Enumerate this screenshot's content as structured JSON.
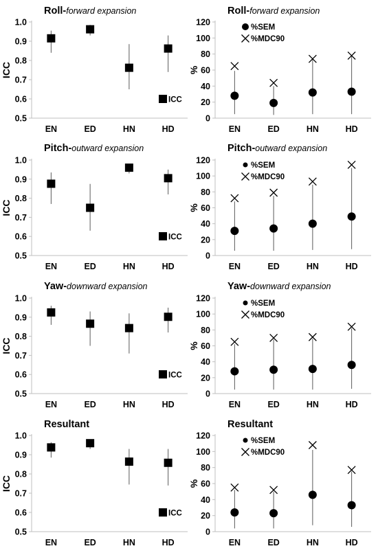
{
  "colors": {
    "marker": "#000000",
    "errorbar": "#595959",
    "axis": "#bfbfbf",
    "background": "#ffffff"
  },
  "chart_data": [
    {
      "panel": "roll-icc",
      "type": "scatter",
      "title": "Roll-",
      "title_italic": "forward expansion",
      "ylabel": "ICC",
      "ylim": [
        0.5,
        1.0
      ],
      "yticks": [
        "0.5",
        "0.6",
        "0.7",
        "0.8",
        "0.9",
        "1.0"
      ],
      "categories": [
        "EN",
        "ED",
        "HN",
        "HD"
      ],
      "series": [
        {
          "name": "ICC",
          "marker": "square",
          "values": [
            0.915,
            0.962,
            0.762,
            0.862
          ],
          "ci_low": [
            0.84,
            0.93,
            0.65,
            0.74
          ],
          "ci_high": [
            0.955,
            0.985,
            0.885,
            0.93
          ]
        }
      ]
    },
    {
      "panel": "roll-error",
      "type": "scatter",
      "title": "Roll-",
      "title_italic": "forward expansion",
      "ylabel": "%",
      "ylim": [
        0,
        120
      ],
      "yticks": [
        "0",
        "20",
        "40",
        "60",
        "80",
        "100",
        "120"
      ],
      "categories": [
        "EN",
        "ED",
        "HN",
        "HD"
      ],
      "series": [
        {
          "name": "%SEM",
          "marker": "circle",
          "values": [
            28,
            19,
            32,
            33
          ],
          "ci_low": [
            5,
            4,
            5,
            5
          ],
          "ci_high": [
            59,
            40,
            74,
            78
          ]
        },
        {
          "name": "%MDC90",
          "marker": "x",
          "values": [
            65,
            44,
            74,
            78
          ]
        }
      ]
    },
    {
      "panel": "pitch-icc",
      "type": "scatter",
      "title": "Pitch-",
      "title_italic": "outward expansion",
      "ylabel": "ICC",
      "ylim": [
        0.5,
        1.0
      ],
      "yticks": [
        "0.5",
        "0.6",
        "0.7",
        "0.8",
        "0.9",
        "1.0"
      ],
      "categories": [
        "EN",
        "ED",
        "HN",
        "HD"
      ],
      "series": [
        {
          "name": "ICC",
          "marker": "square",
          "values": [
            0.876,
            0.75,
            0.96,
            0.905
          ],
          "ci_low": [
            0.77,
            0.63,
            0.93,
            0.82
          ],
          "ci_high": [
            0.935,
            0.875,
            0.98,
            0.95
          ]
        }
      ]
    },
    {
      "panel": "pitch-error",
      "type": "scatter",
      "title": "Pitch-",
      "title_italic": "outward expansion",
      "ylabel": "%",
      "ylim": [
        0,
        120
      ],
      "yticks": [
        "0",
        "20",
        "40",
        "60",
        "80",
        "100",
        "120"
      ],
      "categories": [
        "EN",
        "ED",
        "HN",
        "HD"
      ],
      "series": [
        {
          "name": "%SEM",
          "marker": "circle",
          "values": [
            31,
            34,
            40,
            49
          ],
          "ci_low": [
            6,
            6,
            7,
            8
          ],
          "ci_high": [
            68,
            75,
            89,
            110
          ]
        },
        {
          "name": "%MDC90",
          "marker": "x",
          "values": [
            72,
            79,
            93,
            114
          ]
        }
      ]
    },
    {
      "panel": "yaw-icc",
      "type": "scatter",
      "title": "Yaw-",
      "title_italic": "downward expansion",
      "ylabel": "ICC",
      "ylim": [
        0.5,
        1.0
      ],
      "yticks": [
        "0.5",
        "0.6",
        "0.7",
        "0.8",
        "0.9",
        "1.0"
      ],
      "categories": [
        "EN",
        "ED",
        "HN",
        "HD"
      ],
      "series": [
        {
          "name": "ICC",
          "marker": "square",
          "values": [
            0.925,
            0.866,
            0.843,
            0.902
          ],
          "ci_low": [
            0.86,
            0.75,
            0.71,
            0.82
          ],
          "ci_high": [
            0.96,
            0.93,
            0.92,
            0.95
          ]
        }
      ]
    },
    {
      "panel": "yaw-error",
      "type": "scatter",
      "title": "Yaw-",
      "title_italic": "downward expansion",
      "ylabel": "%",
      "ylim": [
        0,
        120
      ],
      "yticks": [
        "0",
        "20",
        "40",
        "60",
        "80",
        "100",
        "120"
      ],
      "categories": [
        "EN",
        "ED",
        "HN",
        "HD"
      ],
      "series": [
        {
          "name": "%SEM",
          "marker": "circle",
          "values": [
            28,
            30,
            31,
            36
          ],
          "ci_low": [
            5,
            5,
            5,
            6
          ],
          "ci_high": [
            62,
            68,
            69,
            82
          ]
        },
        {
          "name": "%MDC90",
          "marker": "x",
          "values": [
            65,
            70,
            71,
            84
          ]
        }
      ]
    },
    {
      "panel": "resultant-icc",
      "type": "scatter",
      "title": "Resultant",
      "title_italic": "",
      "ylabel": "ICC",
      "ylim": [
        0.5,
        1.0
      ],
      "yticks": [
        "0.5",
        "0.6",
        "0.7",
        "0.8",
        "0.9",
        "1.0"
      ],
      "categories": [
        "EN",
        "ED",
        "HN",
        "HD"
      ],
      "series": [
        {
          "name": "ICC",
          "marker": "square",
          "values": [
            0.938,
            0.96,
            0.864,
            0.858
          ],
          "ci_low": [
            0.885,
            0.93,
            0.745,
            0.74
          ],
          "ci_high": [
            0.965,
            0.98,
            0.93,
            0.93
          ]
        }
      ]
    },
    {
      "panel": "resultant-error",
      "type": "scatter",
      "title": "Resultant",
      "title_italic": "",
      "ylabel": "%",
      "ylim": [
        0,
        120
      ],
      "yticks": [
        "0",
        "20",
        "40",
        "60",
        "80",
        "100",
        "120"
      ],
      "categories": [
        "EN",
        "ED",
        "HN",
        "HD"
      ],
      "series": [
        {
          "name": "%SEM",
          "marker": "circle",
          "values": [
            24,
            23,
            46,
            33
          ],
          "ci_low": [
            4,
            4,
            8,
            6
          ],
          "ci_high": [
            52,
            50,
            102,
            75
          ]
        },
        {
          "name": "%MDC90",
          "marker": "x",
          "values": [
            55,
            52,
            108,
            77
          ]
        }
      ]
    }
  ]
}
